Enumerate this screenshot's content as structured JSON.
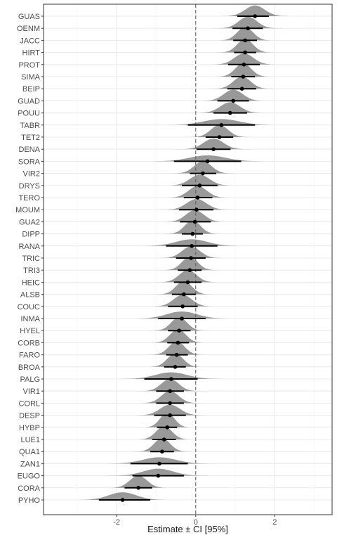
{
  "chart_data": {
    "type": "scatter",
    "title": "",
    "xlabel": "Estimate ± CI [95%]",
    "ylabel": "",
    "xlim": [
      -3.85,
      3.45
    ],
    "x_ticks": [
      -2,
      0,
      2
    ],
    "x_tick_labels": [
      "-2",
      "0",
      "2"
    ],
    "reference_line_x": 0,
    "grid": true,
    "colors": {
      "density": "#999999",
      "point": "#000000",
      "interval": "#000000",
      "reference": "#666666",
      "panel_border": "#333333",
      "grid_major": "#ebebeb",
      "grid_minor": "#f5f5f5"
    },
    "series": [
      {
        "label": "GUAS",
        "estimate": 1.5,
        "ci_low": 1.05,
        "ci_high": 1.85,
        "spread": 0.25
      },
      {
        "label": "OENM",
        "estimate": 1.32,
        "ci_low": 0.93,
        "ci_high": 1.7,
        "spread": 0.23
      },
      {
        "label": "JACC",
        "estimate": 1.25,
        "ci_low": 0.95,
        "ci_high": 1.55,
        "spread": 0.2
      },
      {
        "label": "HIRT",
        "estimate": 1.25,
        "ci_low": 0.97,
        "ci_high": 1.53,
        "spread": 0.2
      },
      {
        "label": "PROT",
        "estimate": 1.22,
        "ci_low": 0.82,
        "ci_high": 1.62,
        "spread": 0.24
      },
      {
        "label": "SIMA",
        "estimate": 1.2,
        "ci_low": 0.9,
        "ci_high": 1.5,
        "spread": 0.2
      },
      {
        "label": "BEIP",
        "estimate": 1.17,
        "ci_low": 0.8,
        "ci_high": 1.53,
        "spread": 0.22
      },
      {
        "label": "GUAD",
        "estimate": 0.95,
        "ci_low": 0.55,
        "ci_high": 1.35,
        "spread": 0.24
      },
      {
        "label": "POUU",
        "estimate": 0.87,
        "ci_low": 0.45,
        "ci_high": 1.3,
        "spread": 0.25
      },
      {
        "label": "TABR",
        "estimate": 0.65,
        "ci_low": -0.2,
        "ci_high": 1.5,
        "spread": 0.45
      },
      {
        "label": "TET2",
        "estimate": 0.6,
        "ci_low": 0.25,
        "ci_high": 0.95,
        "spread": 0.22
      },
      {
        "label": "DENA",
        "estimate": 0.45,
        "ci_low": 0.02,
        "ci_high": 0.88,
        "spread": 0.25
      },
      {
        "label": "SORA",
        "estimate": 0.3,
        "ci_low": -0.55,
        "ci_high": 1.15,
        "spread": 0.45
      },
      {
        "label": "VIR2",
        "estimate": 0.18,
        "ci_low": -0.15,
        "ci_high": 0.52,
        "spread": 0.22
      },
      {
        "label": "DRYS",
        "estimate": 0.1,
        "ci_low": -0.35,
        "ci_high": 0.55,
        "spread": 0.25
      },
      {
        "label": "TERO",
        "estimate": 0.05,
        "ci_low": -0.3,
        "ci_high": 0.42,
        "spread": 0.23
      },
      {
        "label": "MOUM",
        "estimate": 0.02,
        "ci_low": -0.42,
        "ci_high": 0.45,
        "spread": 0.25
      },
      {
        "label": "GUA2",
        "estimate": -0.02,
        "ci_low": -0.4,
        "ci_high": 0.38,
        "spread": 0.23
      },
      {
        "label": "DIPP",
        "estimate": -0.08,
        "ci_low": -0.35,
        "ci_high": 0.18,
        "spread": 0.2
      },
      {
        "label": "RANA",
        "estimate": -0.1,
        "ci_low": -0.75,
        "ci_high": 0.55,
        "spread": 0.4
      },
      {
        "label": "TRIC",
        "estimate": -0.12,
        "ci_low": -0.5,
        "ci_high": 0.25,
        "spread": 0.23
      },
      {
        "label": "TRI3",
        "estimate": -0.15,
        "ci_low": -0.45,
        "ci_high": 0.15,
        "spread": 0.2
      },
      {
        "label": "HEIC",
        "estimate": -0.2,
        "ci_low": -0.55,
        "ci_high": 0.15,
        "spread": 0.22
      },
      {
        "label": "ALSB",
        "estimate": -0.3,
        "ci_low": -0.6,
        "ci_high": 0.0,
        "spread": 0.2
      },
      {
        "label": "COUC",
        "estimate": -0.33,
        "ci_low": -0.7,
        "ci_high": 0.05,
        "spread": 0.23
      },
      {
        "label": "INMA",
        "estimate": -0.35,
        "ci_low": -0.95,
        "ci_high": 0.25,
        "spread": 0.38
      },
      {
        "label": "HYEL",
        "estimate": -0.42,
        "ci_low": -0.7,
        "ci_high": -0.13,
        "spread": 0.2
      },
      {
        "label": "CORB",
        "estimate": -0.45,
        "ci_low": -0.72,
        "ci_high": -0.17,
        "spread": 0.2
      },
      {
        "label": "FARO",
        "estimate": -0.48,
        "ci_low": -0.75,
        "ci_high": -0.2,
        "spread": 0.2
      },
      {
        "label": "BROA",
        "estimate": -0.52,
        "ci_low": -0.8,
        "ci_high": -0.25,
        "spread": 0.2
      },
      {
        "label": "PALG",
        "estimate": -0.62,
        "ci_low": -1.3,
        "ci_high": 0.05,
        "spread": 0.4
      },
      {
        "label": "VIR1",
        "estimate": -0.65,
        "ci_low": -1.0,
        "ci_high": -0.3,
        "spread": 0.22
      },
      {
        "label": "CORL",
        "estimate": -0.65,
        "ci_low": -1.0,
        "ci_high": -0.3,
        "spread": 0.22
      },
      {
        "label": "DESP",
        "estimate": -0.65,
        "ci_low": -1.05,
        "ci_high": -0.25,
        "spread": 0.25
      },
      {
        "label": "HYBP",
        "estimate": -0.72,
        "ci_low": -0.98,
        "ci_high": -0.47,
        "spread": 0.18
      },
      {
        "label": "LUE1",
        "estimate": -0.8,
        "ci_low": -1.1,
        "ci_high": -0.5,
        "spread": 0.2
      },
      {
        "label": "QUA1",
        "estimate": -0.85,
        "ci_low": -1.15,
        "ci_high": -0.55,
        "spread": 0.2
      },
      {
        "label": "ZAN1",
        "estimate": -0.92,
        "ci_low": -1.65,
        "ci_high": -0.2,
        "spread": 0.42
      },
      {
        "label": "EUGO",
        "estimate": -0.95,
        "ci_low": -1.6,
        "ci_high": -0.3,
        "spread": 0.38
      },
      {
        "label": "CORA",
        "estimate": -1.45,
        "ci_low": -1.8,
        "ci_high": -1.1,
        "spread": 0.22
      },
      {
        "label": "PYHO",
        "estimate": -1.85,
        "ci_low": -2.45,
        "ci_high": -1.15,
        "spread": 0.35
      }
    ]
  }
}
